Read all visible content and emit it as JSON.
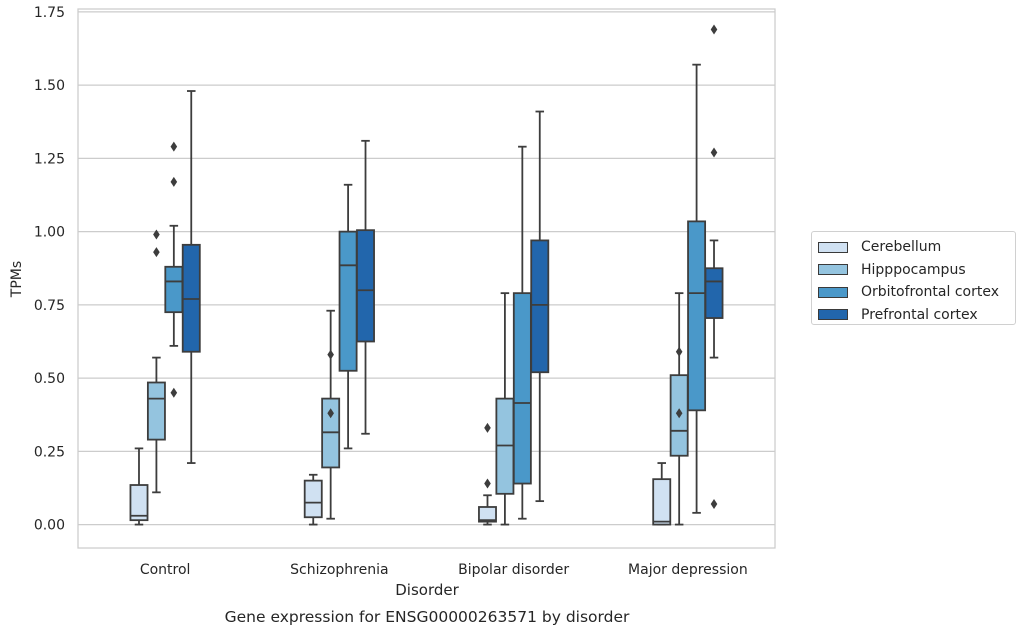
{
  "chart_data": {
    "type": "box",
    "title": "Gene expression for ENSG00000263571 by disorder",
    "xlabel": "Disorder",
    "ylabel": "TPMs",
    "ylim": [
      -0.08,
      1.76
    ],
    "yticks": [
      "0.00",
      "0.25",
      "0.50",
      "0.75",
      "1.00",
      "1.25",
      "1.50",
      "1.75"
    ],
    "grid": "horizontal",
    "legend_position": "right",
    "categories": [
      "Control",
      "Schizophrenia",
      "Bipolar disorder",
      "Major depression"
    ],
    "series": [
      {
        "name": "Cerebellum",
        "color": "#d0e1f2",
        "boxes": [
          {
            "whisker_low": 0.0,
            "q1": 0.015,
            "median": 0.03,
            "q3": 0.135,
            "whisker_high": 0.26,
            "outliers": []
          },
          {
            "whisker_low": 0.0,
            "q1": 0.025,
            "median": 0.075,
            "q3": 0.15,
            "whisker_high": 0.17,
            "outliers": []
          },
          {
            "whisker_low": 0.0,
            "q1": 0.01,
            "median": 0.015,
            "q3": 0.06,
            "whisker_high": 0.1,
            "outliers": [
              0.14,
              0.33
            ]
          },
          {
            "whisker_low": 0.0,
            "q1": 0.0,
            "median": 0.01,
            "q3": 0.155,
            "whisker_high": 0.21,
            "outliers": []
          }
        ]
      },
      {
        "name": "Hipppocampus",
        "color": "#94c4df",
        "boxes": [
          {
            "whisker_low": 0.11,
            "q1": 0.29,
            "median": 0.43,
            "q3": 0.485,
            "whisker_high": 0.57,
            "outliers": [
              0.93,
              0.99
            ]
          },
          {
            "whisker_low": 0.02,
            "q1": 0.195,
            "median": 0.315,
            "q3": 0.43,
            "whisker_high": 0.73,
            "outliers": [
              0.38,
              0.58
            ]
          },
          {
            "whisker_low": 0.0,
            "q1": 0.105,
            "median": 0.27,
            "q3": 0.43,
            "whisker_high": 0.79,
            "outliers": []
          },
          {
            "whisker_low": 0.0,
            "q1": 0.235,
            "median": 0.32,
            "q3": 0.51,
            "whisker_high": 0.79,
            "outliers": [
              0.38,
              0.59
            ]
          }
        ]
      },
      {
        "name": "Orbitofrontal cortex",
        "color": "#4a98c9",
        "boxes": [
          {
            "whisker_low": 0.61,
            "q1": 0.725,
            "median": 0.83,
            "q3": 0.88,
            "whisker_high": 1.02,
            "outliers": [
              0.45,
              1.17,
              1.29
            ]
          },
          {
            "whisker_low": 0.26,
            "q1": 0.525,
            "median": 0.885,
            "q3": 1.0,
            "whisker_high": 1.16,
            "outliers": []
          },
          {
            "whisker_low": 0.02,
            "q1": 0.14,
            "median": 0.415,
            "q3": 0.79,
            "whisker_high": 1.29,
            "outliers": []
          },
          {
            "whisker_low": 0.04,
            "q1": 0.39,
            "median": 0.79,
            "q3": 1.035,
            "whisker_high": 1.57,
            "outliers": []
          }
        ]
      },
      {
        "name": "Prefrontal cortex",
        "color": "#2266ac",
        "boxes": [
          {
            "whisker_low": 0.21,
            "q1": 0.59,
            "median": 0.77,
            "q3": 0.955,
            "whisker_high": 1.48,
            "outliers": []
          },
          {
            "whisker_low": 0.31,
            "q1": 0.625,
            "median": 0.8,
            "q3": 1.005,
            "whisker_high": 1.31,
            "outliers": []
          },
          {
            "whisker_low": 0.08,
            "q1": 0.52,
            "median": 0.75,
            "q3": 0.97,
            "whisker_high": 1.41,
            "outliers": []
          },
          {
            "whisker_low": 0.57,
            "q1": 0.705,
            "median": 0.83,
            "q3": 0.875,
            "whisker_high": 0.97,
            "outliers": [
              0.07,
              1.27,
              1.69
            ]
          }
        ]
      }
    ]
  }
}
